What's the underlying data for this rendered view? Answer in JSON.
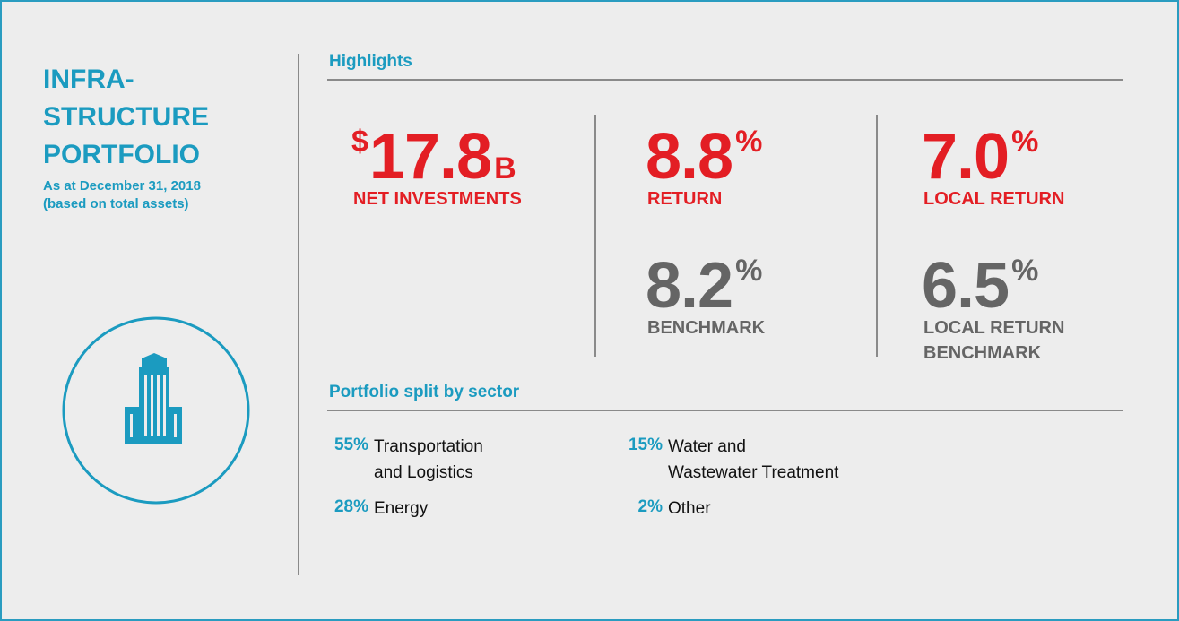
{
  "sidebar": {
    "title_lines": [
      "INFRA-",
      "STRUCTURE",
      "PORTFOLIO"
    ],
    "subtitle_lines": [
      "As at December 31, 2018",
      "(based on total assets)"
    ]
  },
  "highlights": {
    "heading": "Highlights",
    "metrics": [
      {
        "prefix": "$",
        "value": "17.8",
        "suffix": "B",
        "label_lines": [
          "NET INVESTMENTS"
        ]
      },
      {
        "value": "8.8",
        "suffix": "%",
        "label_lines": [
          "RETURN"
        ]
      },
      {
        "value": "7.0",
        "suffix": "%",
        "label_lines": [
          "LOCAL RETURN"
        ]
      },
      {
        "value": "8.2",
        "suffix": "%",
        "label_lines": [
          "BENCHMARK"
        ]
      },
      {
        "value": "6.5",
        "suffix": "%",
        "label_lines": [
          "LOCAL RETURN",
          "BENCHMARK"
        ]
      }
    ]
  },
  "sectors": {
    "heading": "Portfolio split by sector",
    "items": [
      {
        "percent": "55%",
        "label_lines": [
          "Transportation",
          "and Logistics"
        ]
      },
      {
        "percent": "28%",
        "label_lines": [
          "Energy"
        ]
      },
      {
        "percent": "15%",
        "label_lines": [
          "Water and",
          "Wastewater Treatment"
        ]
      },
      {
        "percent": "2%",
        "label_lines": [
          "Other"
        ]
      }
    ]
  }
}
